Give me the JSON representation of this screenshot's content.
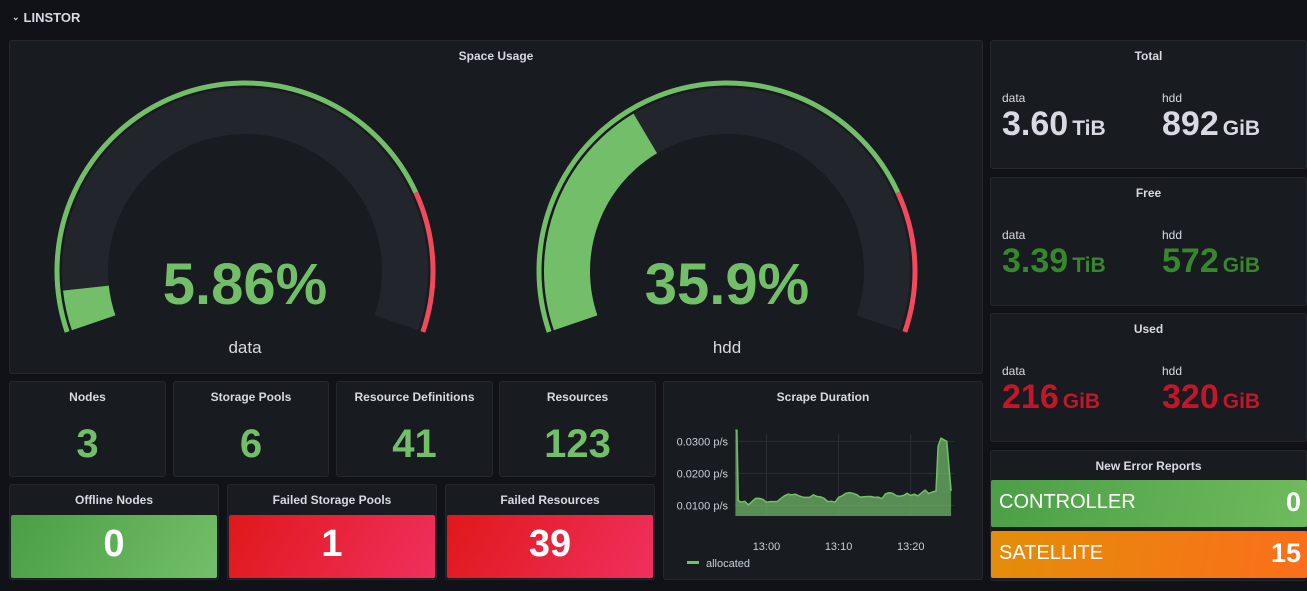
{
  "row": {
    "title": "LINSTOR",
    "chevron_icon": "chevron-down-icon"
  },
  "space_usage": {
    "title": "Space Usage",
    "gauges": [
      {
        "label": "data",
        "display": "5.86%",
        "value": 5.86,
        "min": 0,
        "max": 100,
        "threshold_red": 80
      },
      {
        "label": "hdd",
        "display": "35.9%",
        "value": 35.9,
        "min": 0,
        "max": 100,
        "threshold_red": 80
      }
    ],
    "colors": {
      "green": "#73bf69",
      "red": "#f2495c",
      "track": "#22252b"
    }
  },
  "stats": [
    {
      "title": "Nodes",
      "value": "3"
    },
    {
      "title": "Storage Pools",
      "value": "6"
    },
    {
      "title": "Resource Definitions",
      "value": "41"
    },
    {
      "title": "Resources",
      "value": "123"
    }
  ],
  "status_stats": [
    {
      "title": "Offline Nodes",
      "value": "0",
      "status": "ok"
    },
    {
      "title": "Failed Storage Pools",
      "value": "1",
      "status": "critical"
    },
    {
      "title": "Failed Resources",
      "value": "39",
      "status": "critical"
    }
  ],
  "capacity": [
    {
      "title": "Total",
      "color": "#d8d9e3",
      "items": [
        {
          "label": "data",
          "value": "3.60",
          "unit": "TiB"
        },
        {
          "label": "hdd",
          "value": "892",
          "unit": "GiB"
        }
      ]
    },
    {
      "title": "Free",
      "color": "#37872d",
      "items": [
        {
          "label": "data",
          "value": "3.39",
          "unit": "TiB"
        },
        {
          "label": "hdd",
          "value": "572",
          "unit": "GiB"
        }
      ]
    },
    {
      "title": "Used",
      "color": "#c4162a",
      "items": [
        {
          "label": "data",
          "value": "216",
          "unit": "GiB"
        },
        {
          "label": "hdd",
          "value": "320",
          "unit": "GiB"
        }
      ]
    }
  ],
  "error_reports": {
    "title": "New Error Reports",
    "items": [
      {
        "name": "CONTROLLER",
        "count": "0",
        "status": "ok"
      },
      {
        "name": "SATELLITE",
        "count": "15",
        "status": "warning"
      }
    ]
  },
  "chart_data": {
    "type": "area",
    "title": "Scrape Duration",
    "xlabel": "",
    "ylabel": "",
    "x_ticks": [
      "13:00",
      "13:10",
      "13:20"
    ],
    "y_ticks": [
      "0.0100 p/s",
      "0.0200 p/s",
      "0.0300 p/s"
    ],
    "y_tick_values": [
      0.01,
      0.02,
      0.03
    ],
    "ylim": [
      0.0067,
      0.0345
    ],
    "xlim_minutes": [
      -4.5,
      26
    ],
    "grid": true,
    "legend": "bottom-left",
    "series": [
      {
        "name": "allocated",
        "color": "#73bf69",
        "x_minutes": [
          -4.3,
          -4.1,
          -3.9,
          -3.5,
          -3,
          -2.5,
          -2,
          -1.5,
          -1,
          -0.5,
          0,
          0.5,
          1,
          1.5,
          2,
          2.5,
          3,
          3.5,
          4,
          4.5,
          5,
          5.5,
          6,
          6.5,
          7,
          7.5,
          8,
          8.5,
          9,
          9.5,
          10,
          10.5,
          11,
          11.5,
          12,
          12.5,
          13,
          13.5,
          14,
          14.5,
          15,
          15.5,
          16,
          16.5,
          17,
          17.5,
          18,
          18.5,
          19,
          19.5,
          20,
          20.5,
          21,
          21.5,
          22,
          22.5,
          23,
          23.5,
          23.8,
          24.2,
          24.6,
          25,
          25.3,
          25.6
        ],
        "values": [
          0.0335,
          0.0335,
          0.0115,
          0.011,
          0.0113,
          0.0102,
          0.0112,
          0.0122,
          0.0122,
          0.0119,
          0.011,
          0.0112,
          0.0112,
          0.0112,
          0.0122,
          0.013,
          0.0135,
          0.0133,
          0.0135,
          0.013,
          0.0126,
          0.0125,
          0.0125,
          0.0133,
          0.0128,
          0.0127,
          0.0122,
          0.0112,
          0.0113,
          0.011,
          0.0125,
          0.013,
          0.0138,
          0.014,
          0.0138,
          0.0134,
          0.0126,
          0.0127,
          0.0128,
          0.0128,
          0.0125,
          0.0126,
          0.0121,
          0.0136,
          0.014,
          0.0138,
          0.013,
          0.0129,
          0.0131,
          0.0138,
          0.0131,
          0.0135,
          0.013,
          0.0139,
          0.0148,
          0.0137,
          0.0142,
          0.0145,
          0.0285,
          0.031,
          0.0305,
          0.03,
          0.022,
          0.0145
        ]
      }
    ]
  }
}
